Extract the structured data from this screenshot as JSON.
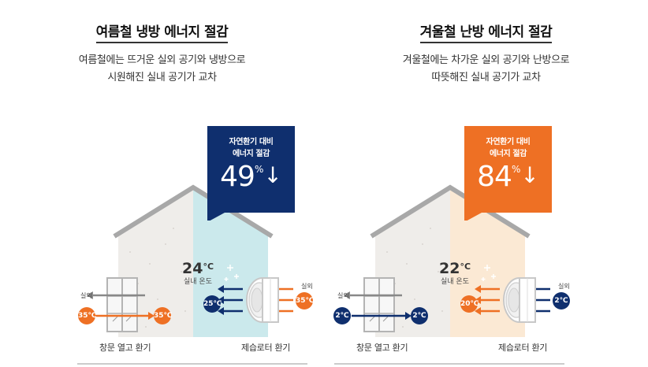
{
  "summer": {
    "title": "여름철 냉방 에너지 절감",
    "desc_line1": "여름철에는 뜨거운 실외 공기와 냉방으로",
    "desc_line2": "시원해진 실내 공기가 교차",
    "badge_line1": "자연환기 대비",
    "badge_line2": "에너지 절감",
    "badge_value": "49",
    "badge_unit": "%",
    "badge_arrow": "↓",
    "indoor_temp": "24",
    "temp_unit": "°C",
    "indoor_label": "실내 온도",
    "outdoor_label": "실외",
    "outdoor_label_right": "실외",
    "window_in_temp": "35℃",
    "window_out_temp": "35℃",
    "erv_in_temp": "25℃",
    "erv_out_temp": "35℃",
    "foot_window": "창문 열고 환기",
    "foot_erv": "제습로터 환기",
    "accent_color": "#0f2f6e",
    "hot_color": "#ee7024"
  },
  "winter": {
    "title": "겨울철 난방 에너지 절감",
    "desc_line1": "겨울철에는 차가운 실외 공기와 난방으로",
    "desc_line2": "따뜻해진 실내 공기가 교차",
    "badge_line1": "자연환기 대비",
    "badge_line2": "에너지 절감",
    "badge_value": "84",
    "badge_unit": "%",
    "badge_arrow": "↓",
    "indoor_temp": "22",
    "temp_unit": "°C",
    "indoor_label": "실내 온도",
    "outdoor_label": "실외",
    "outdoor_label_right": "실외",
    "window_in_temp": "2℃",
    "window_out_temp": "2℃",
    "erv_in_temp": "20℃",
    "erv_out_temp": "2℃",
    "foot_window": "창문 열고 환기",
    "foot_erv": "제습로터 환기",
    "accent_color": "#ee7024",
    "cold_color": "#0f2f6e"
  }
}
